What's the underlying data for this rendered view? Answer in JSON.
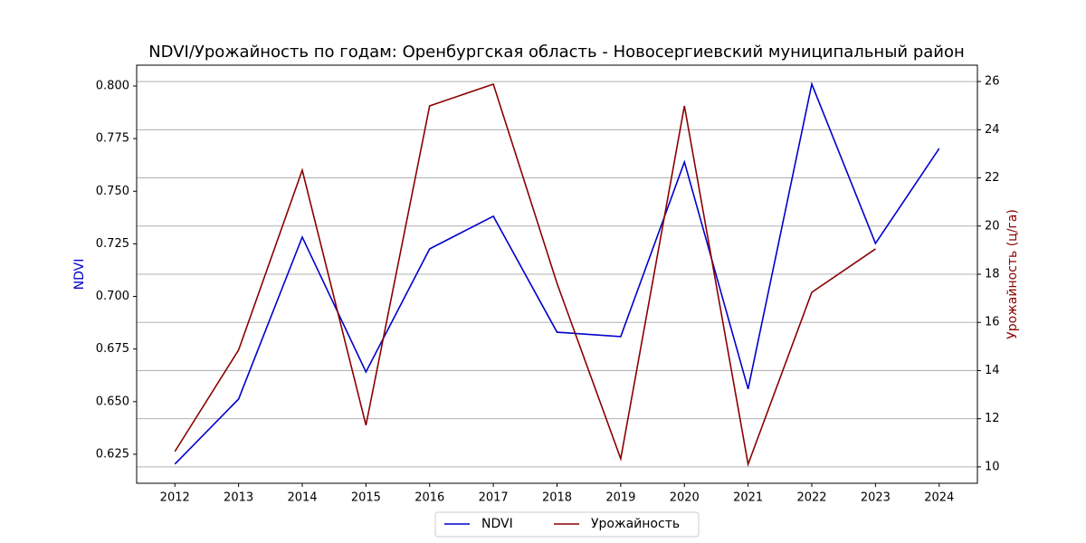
{
  "chart_data": {
    "type": "line",
    "title": "NDVI/Урожайность по годам: Оренбургская область - Новосергиевский муниципальный район",
    "ylabel": "NDVI",
    "y2label": "Урожайность (ц/га)",
    "x": [
      2012,
      2013,
      2014,
      2015,
      2016,
      2017,
      2018,
      2019,
      2020,
      2021,
      2022,
      2023,
      2024
    ],
    "xlim": [
      2011.4,
      2024.6
    ],
    "xticks": [
      2012,
      2013,
      2014,
      2015,
      2016,
      2017,
      2018,
      2019,
      2020,
      2021,
      2022,
      2023,
      2024
    ],
    "ylim": [
      0.6112,
      0.8099
    ],
    "yticks": [
      0.625,
      {
        "value": 0.65,
        "label": "0.650"
      },
      0.675,
      {
        "value": 0.7,
        "label": "0.700"
      },
      0.725,
      {
        "value": 0.75,
        "label": "0.750"
      },
      0.775,
      {
        "value": 0.8,
        "label": "0.800"
      }
    ],
    "y2lim": [
      9.32,
      26.68
    ],
    "y2ticks": [
      10,
      12,
      14,
      16,
      18,
      20,
      22,
      24,
      26
    ],
    "grid": "y2",
    "legend": "lower center",
    "series": [
      {
        "name": "NDVI",
        "color": "#0000cd",
        "values": [
          0.6203,
          0.6512,
          0.7282,
          0.6641,
          0.7226,
          0.7381,
          0.683,
          0.6809,
          0.7639,
          0.656,
          0.8009,
          0.7252,
          0.7703
        ]
      },
      {
        "name": "Урожайность",
        "color": "#8b0000",
        "axis": "y2",
        "values": [
          10.64,
          14.85,
          22.32,
          11.73,
          24.99,
          25.89,
          17.62,
          10.34,
          24.99,
          10.11,
          17.25,
          19.05,
          null
        ]
      }
    ]
  }
}
